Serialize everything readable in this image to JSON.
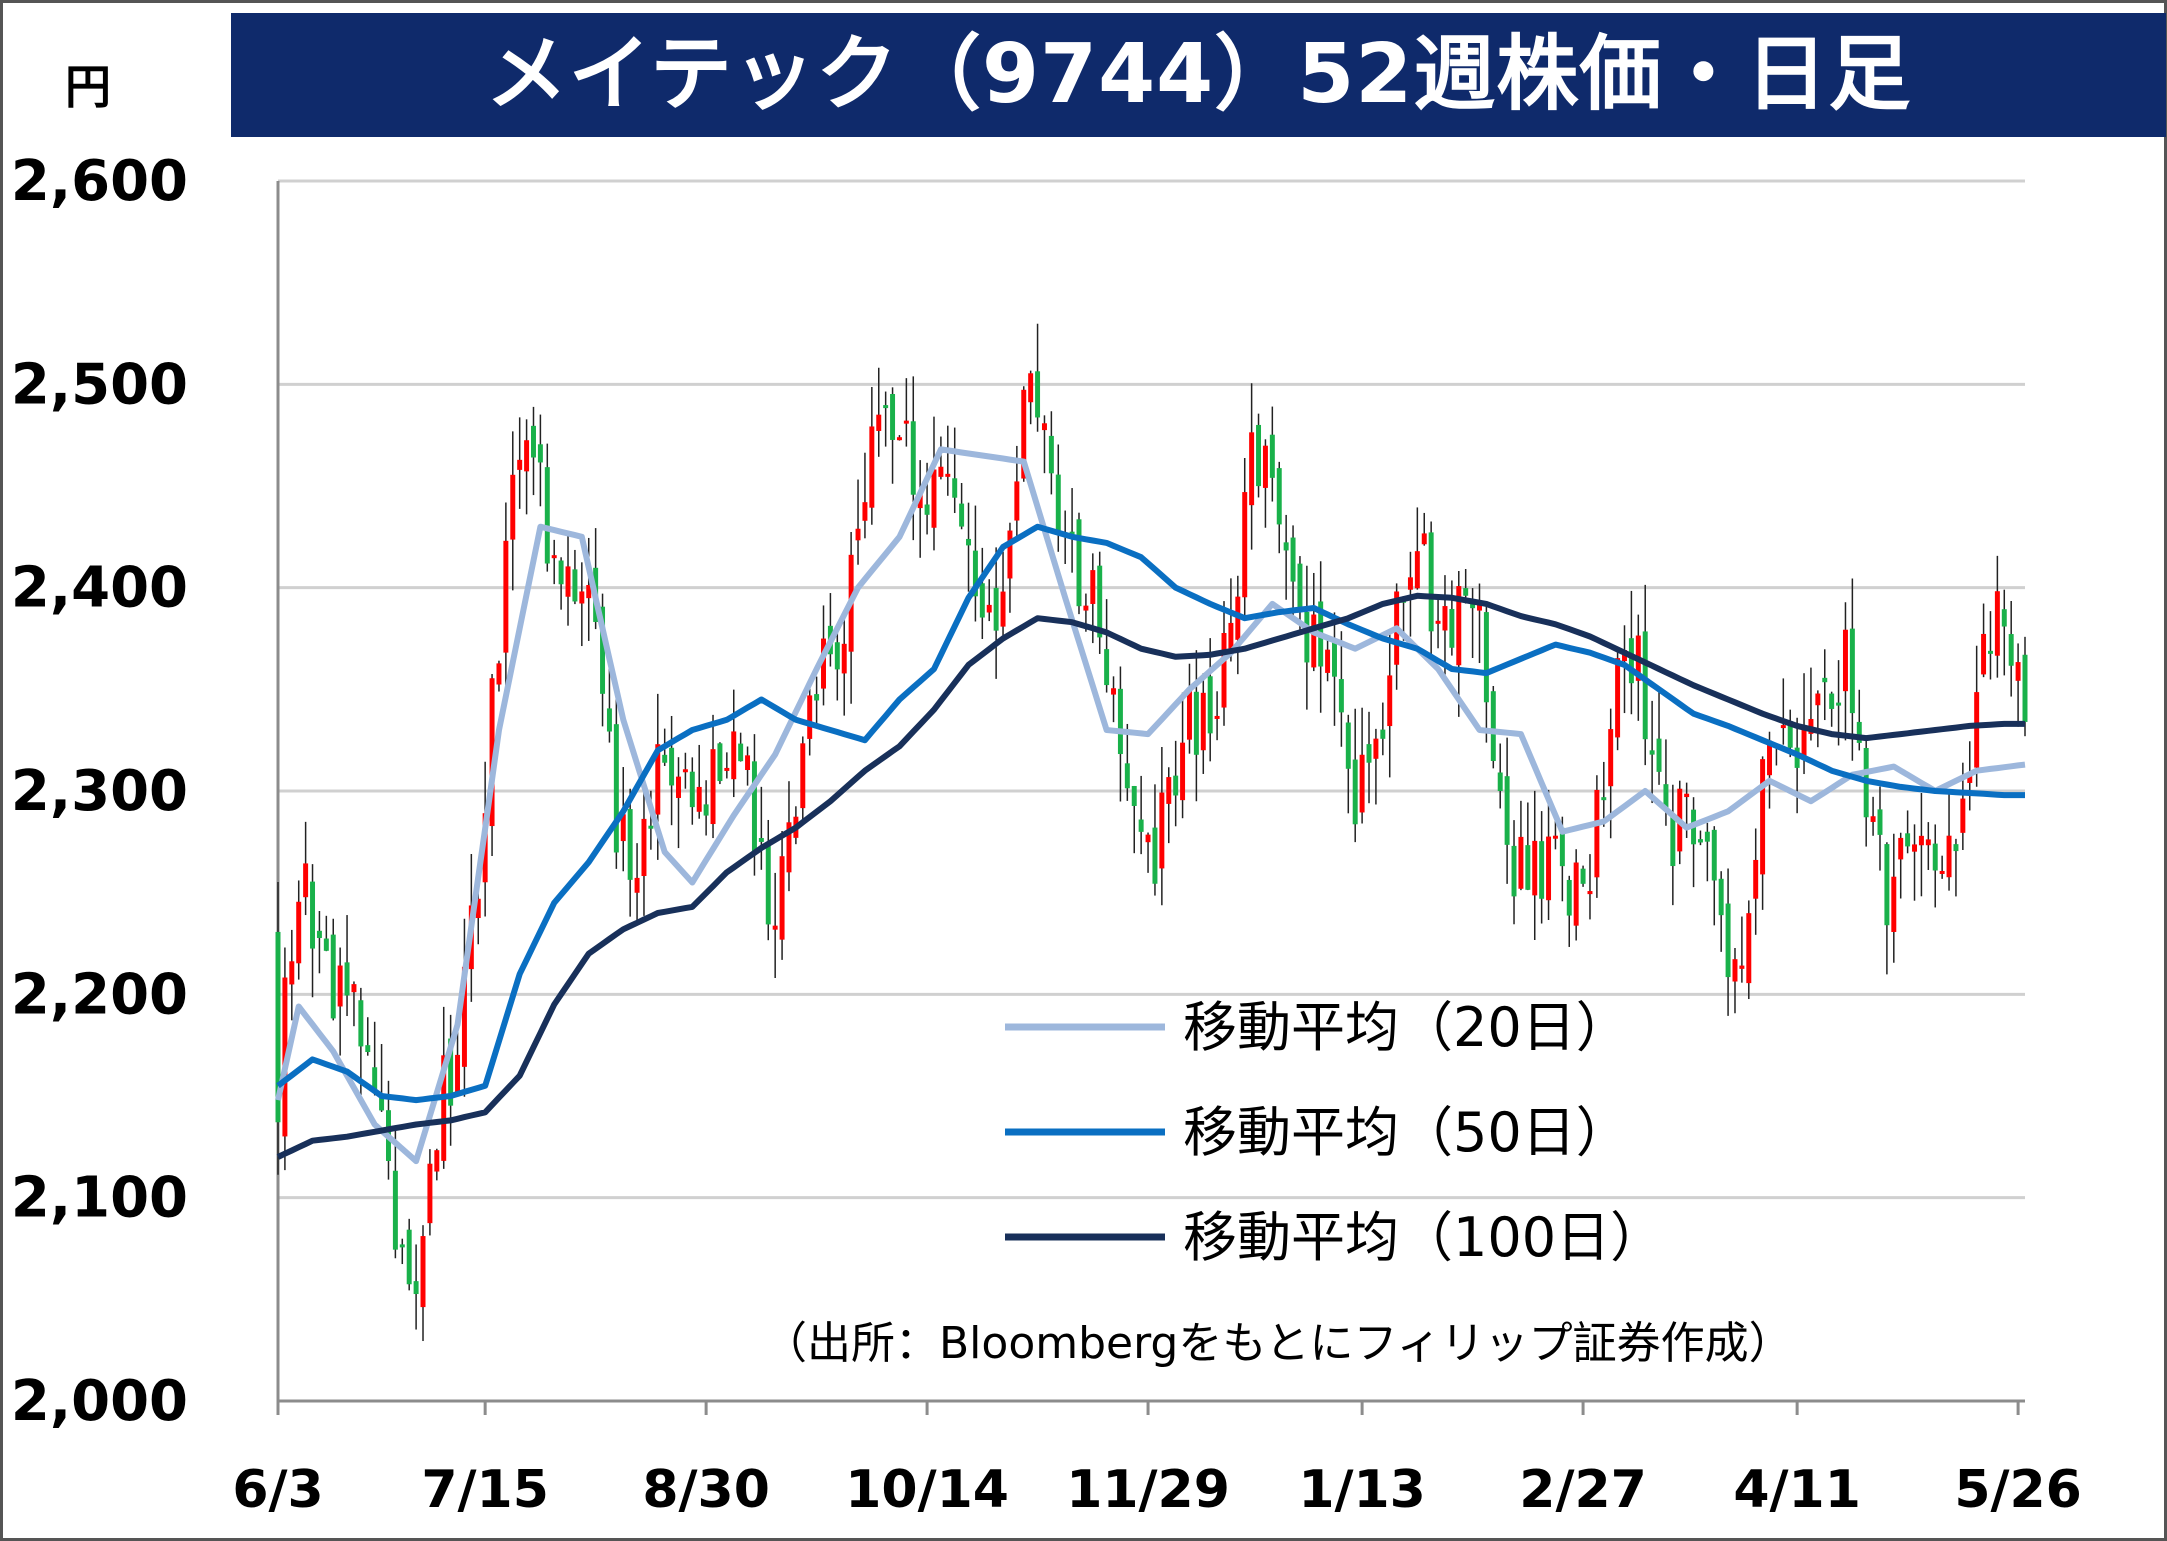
{
  "title": "メイテック（9744）52週株価・日足",
  "unit_label": "円",
  "source": "（出所：Bloombergをもとにフィリップ証券作成）",
  "colors": {
    "title_bg": "#0f2a6b",
    "up": "#ff0000",
    "down": "#19b14a",
    "ma20": "#9db7dc",
    "ma50": "#0a6fc2",
    "ma100": "#18305a",
    "grid": "#d0d0d0"
  },
  "chart_data": {
    "type": "candlestick",
    "ylim": [
      2000,
      2600
    ],
    "yticks": [
      "2,000",
      "2,100",
      "2,200",
      "2,300",
      "2,400",
      "2,500",
      "2,600"
    ],
    "ytick_values": [
      2000,
      2100,
      2200,
      2300,
      2400,
      2500,
      2600
    ],
    "xticks": [
      "6/3",
      "7/15",
      "8/30",
      "10/14",
      "11/29",
      "1/13",
      "2/27",
      "4/11",
      "5/26"
    ],
    "series": [
      {
        "name": "移動平均（20日）",
        "color": "#9db7dc",
        "x": [
          0,
          3,
          8,
          14,
          20,
          26,
          32,
          38,
          44,
          50,
          56,
          60,
          66,
          72,
          78,
          84,
          90,
          96,
          102,
          108,
          114,
          120,
          126,
          132,
          138,
          144,
          150,
          156,
          162,
          168,
          174,
          180,
          186,
          192,
          198,
          204,
          210,
          216,
          222,
          228,
          234,
          240,
          246,
          253
        ],
        "values": [
          2148,
          2194,
          2172,
          2136,
          2118,
          2185,
          2330,
          2430,
          2425,
          2335,
          2270,
          2255,
          2288,
          2318,
          2360,
          2400,
          2425,
          2468,
          2465,
          2462,
          2395,
          2330,
          2328,
          2350,
          2368,
          2392,
          2378,
          2370,
          2380,
          2360,
          2330,
          2328,
          2280,
          2285,
          2300,
          2282,
          2290,
          2305,
          2295,
          2308,
          2312,
          2300,
          2310,
          2313
        ]
      },
      {
        "name": "移動平均（50日）",
        "color": "#0a6fc2",
        "x": [
          0,
          5,
          10,
          15,
          20,
          25,
          30,
          35,
          40,
          45,
          50,
          55,
          60,
          65,
          70,
          75,
          80,
          85,
          90,
          95,
          100,
          105,
          110,
          115,
          120,
          125,
          130,
          135,
          140,
          145,
          150,
          155,
          160,
          165,
          170,
          175,
          180,
          185,
          190,
          195,
          200,
          205,
          210,
          215,
          220,
          225,
          230,
          235,
          240,
          245,
          250,
          253
        ],
        "values": [
          2155,
          2168,
          2162,
          2150,
          2148,
          2150,
          2155,
          2210,
          2245,
          2265,
          2290,
          2320,
          2330,
          2335,
          2345,
          2335,
          2330,
          2325,
          2345,
          2360,
          2395,
          2420,
          2430,
          2425,
          2422,
          2415,
          2400,
          2392,
          2385,
          2388,
          2390,
          2382,
          2375,
          2370,
          2360,
          2358,
          2365,
          2372,
          2368,
          2362,
          2350,
          2338,
          2332,
          2325,
          2318,
          2310,
          2305,
          2302,
          2300,
          2299,
          2298,
          2298
        ]
      },
      {
        "name": "移動平均（100日）",
        "color": "#18305a",
        "x": [
          0,
          5,
          10,
          15,
          20,
          25,
          30,
          35,
          40,
          45,
          50,
          55,
          60,
          65,
          70,
          75,
          80,
          85,
          90,
          95,
          100,
          105,
          110,
          115,
          120,
          125,
          130,
          135,
          140,
          145,
          150,
          155,
          160,
          165,
          170,
          175,
          180,
          185,
          190,
          195,
          200,
          205,
          210,
          215,
          220,
          225,
          230,
          235,
          240,
          245,
          250,
          253
        ],
        "values": [
          2120,
          2128,
          2130,
          2133,
          2136,
          2138,
          2142,
          2160,
          2195,
          2220,
          2232,
          2240,
          2243,
          2260,
          2272,
          2282,
          2295,
          2310,
          2322,
          2340,
          2362,
          2375,
          2385,
          2383,
          2378,
          2370,
          2366,
          2367,
          2370,
          2375,
          2380,
          2385,
          2392,
          2396,
          2395,
          2392,
          2386,
          2382,
          2376,
          2368,
          2360,
          2352,
          2345,
          2338,
          2332,
          2328,
          2326,
          2328,
          2330,
          2332,
          2333,
          2333
        ]
      }
    ],
    "annotations": []
  }
}
